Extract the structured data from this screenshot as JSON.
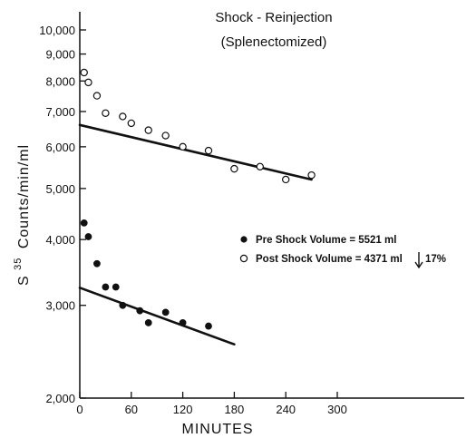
{
  "chart_data": {
    "type": "scatter",
    "title": "Shock - Reinjection",
    "subtitle": "(Splenectomized)",
    "xlabel": "MINUTES",
    "ylabel_prefix": "S",
    "ylabel_superscript": "35",
    "ylabel_suffix": "Counts/min/ml",
    "y_scale": "log",
    "xlim": [
      0,
      300
    ],
    "ylim": [
      2000,
      10000
    ],
    "x_ticks": [
      0,
      60,
      120,
      180,
      240,
      300
    ],
    "x_tick_labels": [
      "0",
      "60",
      "120",
      "180",
      "240",
      "300"
    ],
    "y_ticks": [
      2000,
      3000,
      4000,
      5000,
      6000,
      7000,
      8000,
      9000,
      10000
    ],
    "y_tick_labels": [
      "2,000",
      "3,000",
      "4,000",
      "5,000",
      "6,000",
      "7,000",
      "8,000",
      "9,000",
      "10,000"
    ],
    "series": [
      {
        "name": "Pre Shock Volume = 5521 ml",
        "marker": "filled-circle",
        "x": [
          5,
          10,
          20,
          30,
          42,
          50,
          70,
          80,
          100,
          120,
          150
        ],
        "y": [
          4300,
          4050,
          3600,
          3250,
          3250,
          3000,
          2930,
          2780,
          2910,
          2780,
          2740
        ],
        "fit_line": {
          "x": [
            0,
            180
          ],
          "y": [
            3240,
            2530
          ]
        }
      },
      {
        "name": "Post Shock Volume = 4371 ml",
        "marker": "open-circle",
        "x": [
          5,
          10,
          20,
          30,
          50,
          60,
          80,
          100,
          120,
          150,
          180,
          210,
          240,
          270
        ],
        "y": [
          8300,
          7950,
          7500,
          6950,
          6850,
          6650,
          6450,
          6300,
          6000,
          5900,
          5450,
          5500,
          5200,
          5300
        ],
        "fit_line": {
          "x": [
            0,
            270
          ],
          "y": [
            6600,
            5200
          ]
        }
      }
    ],
    "legend_annotation": "17%"
  },
  "colors": {
    "ink": "#111111",
    "background": "#ffffff"
  }
}
